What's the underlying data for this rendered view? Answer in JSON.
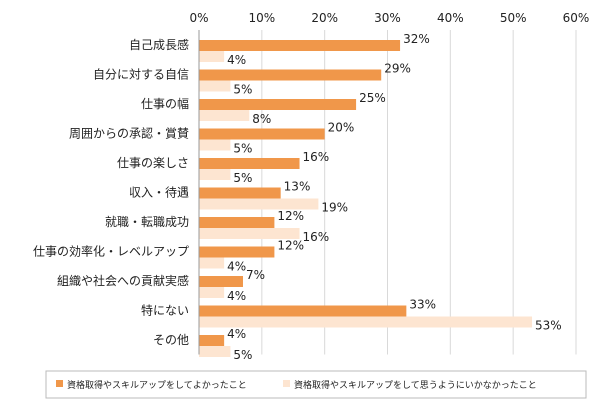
{
  "chart_data": {
    "type": "bar",
    "orientation": "horizontal",
    "categories": [
      "自己成長感",
      "自分に対する自信",
      "仕事の幅",
      "周囲からの承認・賞賛",
      "仕事の楽しさ",
      "収入・待遇",
      "就職・転職成功",
      "仕事の効率化・レベルアップ",
      "組織や社会への貢献実感",
      "特にない",
      "その他"
    ],
    "series": [
      {
        "name": "資格取得やスキルアップをしてよかったこと",
        "color": "#f0974a",
        "values": [
          32,
          29,
          25,
          20,
          16,
          13,
          12,
          12,
          7,
          33,
          4
        ]
      },
      {
        "name": "資格取得やスキルアップをして思うようにいかなかったこと",
        "color": "#fde5d1",
        "values": [
          4,
          5,
          8,
          5,
          5,
          19,
          16,
          4,
          4,
          53,
          5
        ]
      }
    ],
    "value_suffix": "%",
    "xlim": [
      0,
      60
    ],
    "xticks": [
      "0%",
      "10%",
      "20%",
      "30%",
      "40%",
      "50%",
      "60%"
    ],
    "grid": true,
    "legend_position": "bottom"
  }
}
